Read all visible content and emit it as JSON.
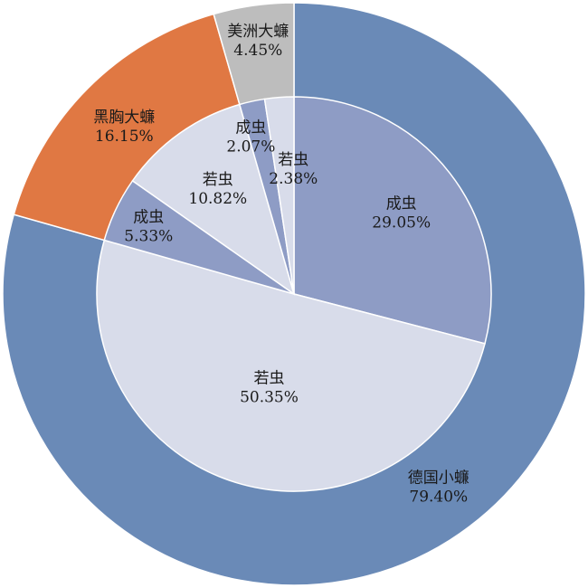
{
  "chart_data": {
    "type": "pie",
    "variant": "nested-donut",
    "outer_ring": [
      {
        "label": "德国小蠊",
        "pct_text": "79.40%",
        "value": 79.4,
        "color": "#6a8ab7"
      },
      {
        "label": "黑胸大蠊",
        "pct_text": "16.15%",
        "value": 16.15,
        "color": "#e07843"
      },
      {
        "label": "美洲大蠊",
        "pct_text": "4.45%",
        "value": 4.45,
        "color": "#bdbdbd"
      }
    ],
    "inner_ring": [
      {
        "label": "成虫",
        "pct_text": "29.05%",
        "value": 29.05,
        "parent": "德国小蠊",
        "color": "#8e9cc5"
      },
      {
        "label": "若虫",
        "pct_text": "50.35%",
        "value": 50.35,
        "parent": "德国小蠊",
        "color": "#d8dcea"
      },
      {
        "label": "成虫",
        "pct_text": "5.33%",
        "value": 5.33,
        "parent": "黑胸大蠊",
        "color": "#8e9cc5"
      },
      {
        "label": "若虫",
        "pct_text": "10.82%",
        "value": 10.82,
        "parent": "黑胸大蠊",
        "color": "#d8dcea"
      },
      {
        "label": "成虫",
        "pct_text": "2.07%",
        "value": 2.07,
        "parent": "美洲大蠊",
        "color": "#8e9cc5"
      },
      {
        "label": "若虫",
        "pct_text": "2.38%",
        "value": 2.38,
        "parent": "美洲大蠊",
        "color": "#d8dcea"
      }
    ]
  }
}
